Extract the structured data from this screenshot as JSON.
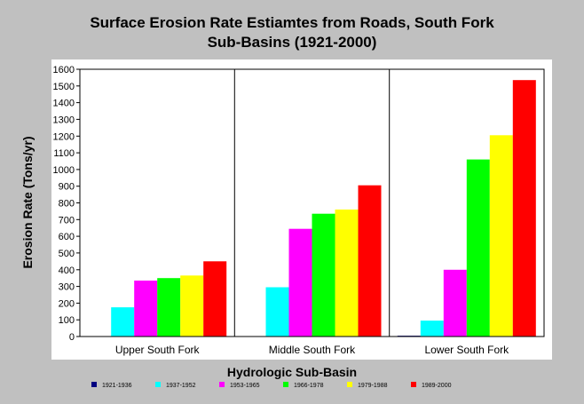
{
  "chart_data": {
    "type": "bar",
    "title_lines": [
      "Surface Erosion Rate Estiamtes from Roads, South Fork",
      "Sub-Basins (1921-2000)"
    ],
    "xlabel": "Hydrologic Sub-Basin",
    "ylabel": "Erosion Rate (Tons/yr)",
    "ylim": [
      0,
      1600
    ],
    "yticks": [
      0,
      100,
      200,
      300,
      400,
      500,
      600,
      700,
      800,
      900,
      1000,
      1100,
      1200,
      1300,
      1400,
      1500,
      1600
    ],
    "grid": false,
    "legend_position": "bottom",
    "categories": [
      "Upper South Fork",
      "Middle South Fork",
      "Lower South Fork"
    ],
    "series": [
      {
        "name": "1921-1936",
        "color": "#000080",
        "values": [
          0,
          0,
          5
        ]
      },
      {
        "name": "1937-1952",
        "color": "#00ffff",
        "values": [
          175,
          295,
          95
        ]
      },
      {
        "name": "1953-1965",
        "color": "#ff00ff",
        "values": [
          335,
          645,
          400
        ]
      },
      {
        "name": "1966-1978",
        "color": "#00ff00",
        "values": [
          350,
          735,
          1060
        ]
      },
      {
        "name": "1979-1988",
        "color": "#ffff00",
        "values": [
          365,
          760,
          1205
        ]
      },
      {
        "name": "1989-2000",
        "color": "#ff0000",
        "values": [
          450,
          905,
          1535
        ]
      }
    ]
  }
}
